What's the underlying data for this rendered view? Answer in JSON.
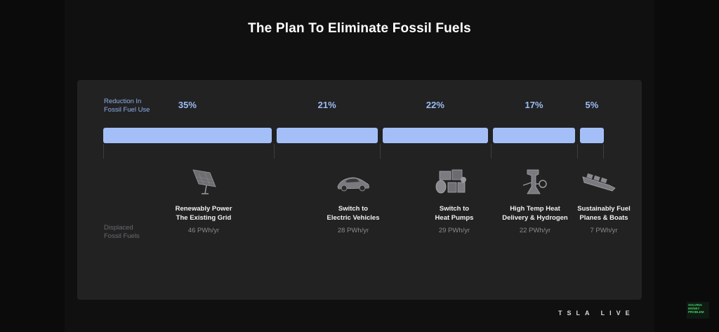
{
  "title": "The Plan To Eliminate Fossil Fuels",
  "labels": {
    "reduction_line1": "Reduction In",
    "reduction_line2": "Fossil Fuel Use",
    "displaced_line1": "Displaced",
    "displaced_line2": "Fossil Fuels"
  },
  "brand": "TSLA LIVE",
  "watermark": {
    "line1": "SOLVING",
    "line2": "MONEY",
    "line3": "PROBLEM"
  },
  "icons": [
    "solar-panel-icon",
    "electric-car-icon",
    "heat-pump-icon",
    "industrial-heat-icon",
    "ship-icon"
  ],
  "colors": {
    "bar": "#a4bff7",
    "percent": "#9dbcf3",
    "background": "#222223"
  },
  "chart_data": {
    "type": "bar",
    "orientation": "horizontal-stacked",
    "title": "The Plan To Eliminate Fossil Fuels",
    "categories": [
      "Renewably Power The Existing Grid",
      "Switch to Electric Vehicles",
      "Switch to Heat Pumps",
      "High Temp Heat Delivery & Hydrogen",
      "Sustainably Fuel Planes & Boats"
    ],
    "series": [
      {
        "name": "Reduction In Fossil Fuel Use",
        "values": [
          35,
          21,
          22,
          17,
          5
        ],
        "labels": [
          "35%",
          "21%",
          "22%",
          "17%",
          "5%"
        ]
      },
      {
        "name": "Displaced Fossil Fuels",
        "values": [
          46,
          28,
          29,
          22,
          7
        ],
        "labels": [
          "46 PWh/yr",
          "28 PWh/yr",
          "29 PWh/yr",
          "22 PWh/yr",
          "7 PWh/yr"
        ]
      }
    ],
    "name_lines": [
      [
        "Renewably Power",
        "The Existing Grid"
      ],
      [
        "Switch to",
        "Electric Vehicles"
      ],
      [
        "Switch to",
        "Heat Pumps"
      ],
      [
        "High Temp Heat",
        "Delivery & Hydrogen"
      ],
      [
        "Sustainably Fuel",
        "Planes & Boats"
      ]
    ],
    "unit": "PWh/yr",
    "grid": false
  }
}
